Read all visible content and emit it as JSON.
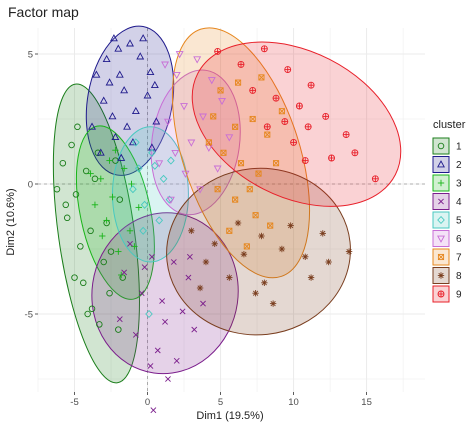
{
  "chart_data": {
    "type": "scatter",
    "title": "Factor map",
    "xlabel": "Dim1 (19.5%)",
    "ylabel": "Dim2 (10.6%)",
    "xlim": [
      -7.2,
      18.5
    ],
    "ylim": [
      -8,
      6
    ],
    "x_ticks": [
      -5,
      0,
      5,
      10,
      15
    ],
    "y_ticks": [
      -5,
      0,
      5
    ],
    "x_tick_labels": [
      "-5",
      "0",
      "5",
      "10",
      "15"
    ],
    "y_tick_labels": [
      "-5",
      "0",
      "5"
    ],
    "grid": true,
    "legend": {
      "title": "cluster",
      "position": "right",
      "entries": [
        "1",
        "2",
        "3",
        "4",
        "5",
        "6",
        "7",
        "8",
        "9"
      ]
    },
    "series": [
      {
        "name": "1",
        "color": "#1b7e1b",
        "marker": "circle",
        "ellipse": {
          "cx": -3.5,
          "cy": -1.9,
          "rx": 2.6,
          "ry": 5.8,
          "angle_deg": 8
        },
        "points": [
          [
            -5.8,
            0.8
          ],
          [
            -6.2,
            -0.2
          ],
          [
            -5.2,
            1.5
          ],
          [
            -5.5,
            -1.3
          ],
          [
            -4.8,
            2.2
          ],
          [
            -4.2,
            0.5
          ],
          [
            -4.6,
            -2.4
          ],
          [
            -5.0,
            -3.6
          ],
          [
            -3.8,
            -4.8
          ],
          [
            -3.3,
            -5.4
          ],
          [
            -4.1,
            -5.0
          ],
          [
            -3.0,
            -3.0
          ],
          [
            -2.6,
            -4.2
          ],
          [
            -2.8,
            -1.5
          ],
          [
            -3.6,
            0.2
          ],
          [
            -2.2,
            0.9
          ],
          [
            -1.9,
            -0.6
          ],
          [
            -3.9,
            -1.8
          ],
          [
            -4.4,
            -3.8
          ],
          [
            -2.0,
            -5.6
          ],
          [
            -2.5,
            -2.6
          ],
          [
            -3.4,
            1.2
          ],
          [
            -5.6,
            -0.8
          ],
          [
            -1.7,
            -3.6
          ],
          [
            -4.9,
            -0.4
          ]
        ]
      },
      {
        "name": "2",
        "color": "#1f1a8c",
        "marker": "triangle",
        "ellipse": {
          "cx": -1.2,
          "cy": 3.2,
          "rx": 2.9,
          "ry": 2.9,
          "angle_deg": -10
        },
        "points": [
          [
            -3.5,
            4.2
          ],
          [
            -2.8,
            4.8
          ],
          [
            -2.0,
            5.2
          ],
          [
            -1.2,
            5.4
          ],
          [
            -0.5,
            4.9
          ],
          [
            0.2,
            4.3
          ],
          [
            -3.0,
            3.2
          ],
          [
            -2.4,
            2.6
          ],
          [
            -1.6,
            3.6
          ],
          [
            -0.8,
            2.8
          ],
          [
            0.0,
            3.4
          ],
          [
            -3.8,
            2.2
          ],
          [
            -2.2,
            1.8
          ],
          [
            -1.0,
            1.6
          ],
          [
            0.6,
            2.4
          ],
          [
            -1.9,
            4.2
          ],
          [
            -0.3,
            5.6
          ],
          [
            -2.6,
            3.9
          ],
          [
            -1.4,
            2.2
          ],
          [
            0.5,
            3.8
          ],
          [
            -3.2,
            1.2
          ],
          [
            -1.8,
            1.0
          ],
          [
            0.3,
            1.4
          ],
          [
            -2.3,
            5.6
          ]
        ]
      },
      {
        "name": "3",
        "color": "#19b519",
        "marker": "plus",
        "ellipse": {
          "cx": -2.2,
          "cy": -1.1,
          "rx": 2.4,
          "ry": 3.4,
          "angle_deg": 12
        },
        "points": [
          [
            -3.2,
            0.2
          ],
          [
            -2.4,
            -0.5
          ],
          [
            -1.6,
            0.6
          ],
          [
            -2.8,
            -1.4
          ],
          [
            -1.2,
            -1.8
          ],
          [
            -3.6,
            -0.8
          ],
          [
            -2.0,
            -2.6
          ],
          [
            -1.1,
            0.0
          ],
          [
            -0.6,
            -0.9
          ],
          [
            -2.6,
            0.9
          ],
          [
            -3.9,
            0.4
          ],
          [
            -1.8,
            -3.5
          ],
          [
            -0.9,
            -2.4
          ],
          [
            -3.1,
            -2.0
          ],
          [
            -2.2,
            1.3
          ]
        ]
      },
      {
        "name": "4",
        "color": "#7b1e8c",
        "marker": "cross",
        "ellipse": {
          "cx": 1.2,
          "cy": -4.2,
          "rx": 5.0,
          "ry": 3.1,
          "angle_deg": -8
        },
        "points": [
          [
            -1.2,
            -2.3
          ],
          [
            0.3,
            -2.8
          ],
          [
            1.8,
            -3.0
          ],
          [
            2.8,
            -3.6
          ],
          [
            -0.4,
            -4.2
          ],
          [
            1.0,
            -4.5
          ],
          [
            2.4,
            -4.9
          ],
          [
            -1.9,
            -5.2
          ],
          [
            -0.8,
            -5.8
          ],
          [
            0.7,
            -6.4
          ],
          [
            2.0,
            -6.8
          ],
          [
            3.2,
            -5.6
          ],
          [
            -1.6,
            -3.4
          ],
          [
            0.2,
            -7.0
          ],
          [
            1.4,
            -7.5
          ],
          [
            0.4,
            -8.7
          ],
          [
            -0.2,
            -3.2
          ],
          [
            2.9,
            -2.8
          ],
          [
            3.8,
            -4.6
          ],
          [
            1.2,
            -5.3
          ]
        ]
      },
      {
        "name": "5",
        "color": "#48c9c0",
        "marker": "diamond",
        "ellipse": {
          "cx": 0.2,
          "cy": -0.4,
          "rx": 2.6,
          "ry": 2.6,
          "angle_deg": 0
        },
        "points": [
          [
            -0.6,
            0.6
          ],
          [
            0.3,
            1.2
          ],
          [
            1.1,
            0.2
          ],
          [
            -0.2,
            -0.8
          ],
          [
            0.8,
            -1.4
          ],
          [
            -1.0,
            -0.2
          ],
          [
            0.5,
            0.7
          ],
          [
            -0.3,
            -1.8
          ],
          [
            1.5,
            -0.6
          ],
          [
            0.1,
            -5.0
          ],
          [
            -0.8,
            1.6
          ],
          [
            1.6,
            0.9
          ]
        ]
      },
      {
        "name": "6",
        "color": "#c86ed6",
        "marker": "triangle-down",
        "ellipse": {
          "cx": 3.3,
          "cy": 1.6,
          "rx": 3.0,
          "ry": 2.8,
          "angle_deg": -8
        },
        "points": [
          [
            1.2,
            4.6
          ],
          [
            2.0,
            4.2
          ],
          [
            3.4,
            4.8
          ],
          [
            4.4,
            4.0
          ],
          [
            2.5,
            3.0
          ],
          [
            1.4,
            2.4
          ],
          [
            3.8,
            2.6
          ],
          [
            5.1,
            3.2
          ],
          [
            1.9,
            1.2
          ],
          [
            3.0,
            1.6
          ],
          [
            4.2,
            1.4
          ],
          [
            2.6,
            0.4
          ],
          [
            3.6,
            -0.2
          ],
          [
            1.6,
            -0.6
          ],
          [
            4.8,
            0.6
          ],
          [
            2.2,
            5.0
          ],
          [
            0.8,
            0.8
          ],
          [
            5.6,
            1.8
          ]
        ]
      },
      {
        "name": "7",
        "color": "#e6871e",
        "marker": "square-x",
        "ellipse": {
          "cx": 6.4,
          "cy": 1.2,
          "rx": 4.0,
          "ry": 5.0,
          "angle_deg": 18
        },
        "points": [
          [
            5.0,
            3.6
          ],
          [
            6.2,
            3.9
          ],
          [
            7.8,
            4.1
          ],
          [
            4.5,
            2.6
          ],
          [
            6.0,
            2.2
          ],
          [
            7.2,
            2.5
          ],
          [
            8.2,
            1.9
          ],
          [
            5.2,
            1.2
          ],
          [
            6.4,
            0.8
          ],
          [
            7.6,
            0.4
          ],
          [
            8.8,
            0.8
          ],
          [
            4.8,
            -0.2
          ],
          [
            6.0,
            -0.6
          ],
          [
            7.4,
            -1.2
          ],
          [
            8.4,
            -1.6
          ],
          [
            5.6,
            -1.8
          ],
          [
            6.8,
            -2.4
          ],
          [
            9.2,
            2.8
          ],
          [
            4.2,
            1.6
          ],
          [
            7.0,
            -0.2
          ]
        ]
      },
      {
        "name": "8",
        "color": "#7a3e1f",
        "marker": "asterisk",
        "ellipse": {
          "cx": 7.6,
          "cy": -2.6,
          "rx": 6.3,
          "ry": 3.2,
          "angle_deg": 6
        },
        "points": [
          [
            3.0,
            -1.8
          ],
          [
            4.6,
            -2.3
          ],
          [
            6.2,
            -1.5
          ],
          [
            7.8,
            -2.0
          ],
          [
            9.2,
            -2.5
          ],
          [
            10.8,
            -2.8
          ],
          [
            12.4,
            -3.0
          ],
          [
            13.8,
            -2.6
          ],
          [
            5.6,
            -3.6
          ],
          [
            8.0,
            -3.8
          ],
          [
            11.2,
            -3.6
          ],
          [
            7.4,
            -4.2
          ],
          [
            4.0,
            -3.0
          ],
          [
            6.6,
            -2.7
          ],
          [
            9.8,
            -1.6
          ],
          [
            12.0,
            -1.9
          ],
          [
            8.6,
            -4.6
          ],
          [
            3.6,
            -4.0
          ]
        ]
      },
      {
        "name": "9",
        "color": "#e8202a",
        "marker": "circle-plus",
        "ellipse": {
          "cx": 10.2,
          "cy": 2.3,
          "rx": 7.6,
          "ry": 2.8,
          "angle_deg": -27
        },
        "points": [
          [
            4.8,
            5.1
          ],
          [
            6.4,
            4.6
          ],
          [
            8.0,
            5.2
          ],
          [
            9.6,
            4.4
          ],
          [
            7.2,
            3.6
          ],
          [
            8.8,
            3.3
          ],
          [
            10.4,
            3.0
          ],
          [
            11.2,
            3.8
          ],
          [
            9.4,
            2.4
          ],
          [
            11.0,
            2.2
          ],
          [
            12.2,
            2.6
          ],
          [
            13.6,
            1.9
          ],
          [
            10.0,
            1.6
          ],
          [
            12.6,
            1.0
          ],
          [
            14.2,
            1.2
          ],
          [
            15.6,
            0.2
          ],
          [
            8.2,
            2.2
          ],
          [
            10.8,
            0.9
          ]
        ]
      }
    ]
  }
}
